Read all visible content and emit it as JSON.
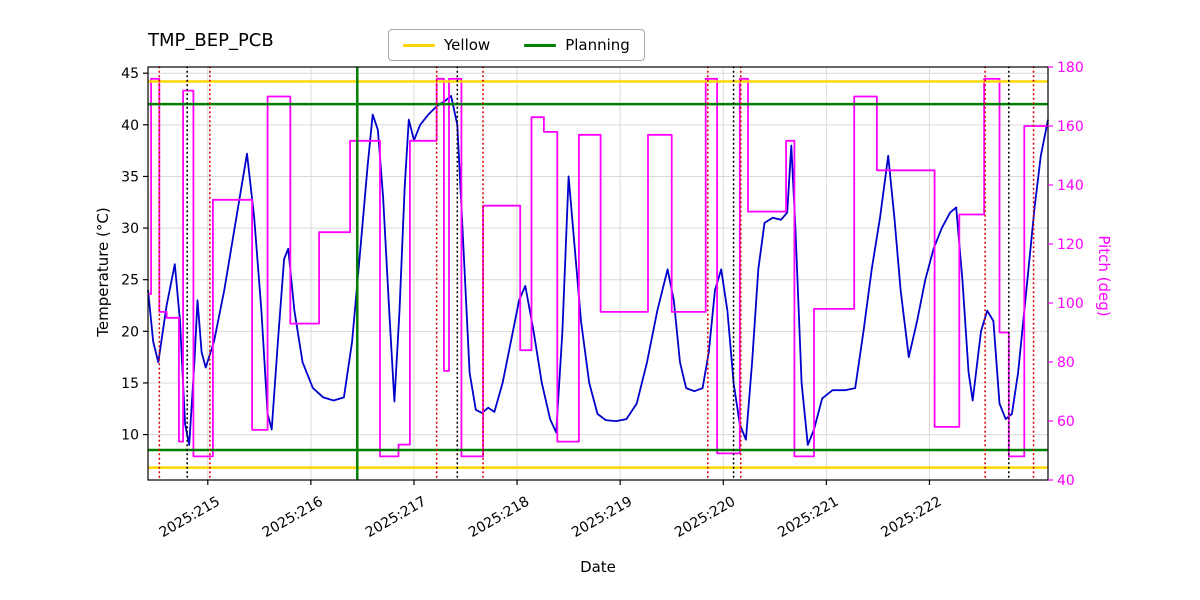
{
  "chart_data": {
    "type": "line",
    "title": "TMP_BEP_PCB",
    "xlabel": "Date",
    "background": "#ffffff",
    "grid": true,
    "grid_color": "#d9d9d9",
    "xlim": [
      214.42,
      223.15
    ],
    "x_ticks": [
      {
        "value": 215,
        "label": "2025:215"
      },
      {
        "value": 216,
        "label": "2025:216"
      },
      {
        "value": 217,
        "label": "2025:217"
      },
      {
        "value": 218,
        "label": "2025:218"
      },
      {
        "value": 219,
        "label": "2025:219"
      },
      {
        "value": 220,
        "label": "2025:220"
      },
      {
        "value": 221,
        "label": "2025:221"
      },
      {
        "value": 222,
        "label": "2025:222"
      }
    ],
    "left_axis": {
      "label": "Temperature (°C)",
      "lim": [
        5.6,
        45.6
      ],
      "ticks": [
        10,
        15,
        20,
        25,
        30,
        35,
        40,
        45
      ],
      "color": "#000000"
    },
    "right_axis": {
      "label": "Pitch (deg)",
      "lim": [
        40,
        180
      ],
      "ticks": [
        40,
        60,
        80,
        100,
        120,
        140,
        160,
        180
      ],
      "color": "#ff00ff"
    },
    "legend": {
      "position": "upper-center-outside",
      "items": [
        {
          "label": "Yellow",
          "color": "#ffd700"
        },
        {
          "label": "Planning",
          "color": "#008000"
        }
      ]
    },
    "hlines": [
      {
        "name": "yellow-upper",
        "y": 44.2,
        "axis": "left",
        "color": "#ffd700",
        "style": "solid"
      },
      {
        "name": "yellow-lower",
        "y": 6.8,
        "axis": "left",
        "color": "#ffd700",
        "style": "solid"
      },
      {
        "name": "planning-upper",
        "y": 42.0,
        "axis": "left",
        "color": "#008000",
        "style": "solid"
      },
      {
        "name": "planning-lower",
        "y": 8.5,
        "axis": "left",
        "color": "#008000",
        "style": "solid"
      }
    ],
    "vlines": [
      {
        "name": "green-solid-1",
        "x": 216.45,
        "color": "#008000",
        "style": "solid"
      },
      {
        "name": "red-dotted-1",
        "x": 214.53,
        "color": "#dd0000",
        "style": "dotted"
      },
      {
        "name": "red-dotted-2",
        "x": 215.02,
        "color": "#dd0000",
        "style": "dotted"
      },
      {
        "name": "red-dotted-3",
        "x": 217.22,
        "color": "#dd0000",
        "style": "dotted"
      },
      {
        "name": "red-dotted-4",
        "x": 217.67,
        "color": "#dd0000",
        "style": "dotted"
      },
      {
        "name": "red-dotted-5",
        "x": 219.85,
        "color": "#dd0000",
        "style": "dotted"
      },
      {
        "name": "red-dotted-6",
        "x": 220.17,
        "color": "#dd0000",
        "style": "dotted"
      },
      {
        "name": "red-dotted-7",
        "x": 222.54,
        "color": "#dd0000",
        "style": "dotted"
      },
      {
        "name": "red-dotted-8",
        "x": 223.01,
        "color": "#dd0000",
        "style": "dotted"
      },
      {
        "name": "black-dotted-1",
        "x": 214.8,
        "color": "#000000",
        "style": "dotted"
      },
      {
        "name": "black-dotted-2",
        "x": 217.42,
        "color": "#000000",
        "style": "dotted"
      },
      {
        "name": "black-dotted-3",
        "x": 220.1,
        "color": "#000000",
        "style": "dotted"
      },
      {
        "name": "black-dotted-4",
        "x": 222.77,
        "color": "#000000",
        "style": "dotted"
      }
    ],
    "series": [
      {
        "name": "temperature",
        "axis": "left",
        "type": "line",
        "color": "#0000cd",
        "points": [
          [
            214.42,
            24
          ],
          [
            214.47,
            19
          ],
          [
            214.52,
            17
          ],
          [
            214.6,
            22.5
          ],
          [
            214.68,
            26.5
          ],
          [
            214.73,
            21
          ],
          [
            214.78,
            11
          ],
          [
            214.82,
            9
          ],
          [
            214.87,
            17
          ],
          [
            214.9,
            23
          ],
          [
            214.94,
            18
          ],
          [
            214.98,
            16.5
          ],
          [
            215.06,
            19
          ],
          [
            215.16,
            24
          ],
          [
            215.26,
            30
          ],
          [
            215.38,
            37.2
          ],
          [
            215.45,
            31
          ],
          [
            215.52,
            22
          ],
          [
            215.58,
            12
          ],
          [
            215.62,
            10.5
          ],
          [
            215.68,
            19
          ],
          [
            215.74,
            27
          ],
          [
            215.78,
            28
          ],
          [
            215.84,
            22
          ],
          [
            215.92,
            17
          ],
          [
            216.02,
            14.5
          ],
          [
            216.12,
            13.6
          ],
          [
            216.22,
            13.3
          ],
          [
            216.32,
            13.6
          ],
          [
            216.4,
            19
          ],
          [
            216.48,
            28
          ],
          [
            216.55,
            36
          ],
          [
            216.6,
            41
          ],
          [
            216.65,
            39.5
          ],
          [
            216.7,
            33
          ],
          [
            216.76,
            22
          ],
          [
            216.81,
            13.2
          ],
          [
            216.86,
            22
          ],
          [
            216.91,
            34
          ],
          [
            216.95,
            40.5
          ],
          [
            217.0,
            38.5
          ],
          [
            217.06,
            40
          ],
          [
            217.14,
            41
          ],
          [
            217.22,
            41.8
          ],
          [
            217.3,
            42.3
          ],
          [
            217.36,
            42.8
          ],
          [
            217.42,
            40
          ],
          [
            217.48,
            28
          ],
          [
            217.54,
            16
          ],
          [
            217.6,
            12.4
          ],
          [
            217.66,
            12.1
          ],
          [
            217.72,
            12.6
          ],
          [
            217.78,
            12.2
          ],
          [
            217.86,
            15
          ],
          [
            217.94,
            19
          ],
          [
            218.02,
            23
          ],
          [
            218.08,
            24.4
          ],
          [
            218.16,
            20
          ],
          [
            218.24,
            15
          ],
          [
            218.32,
            11.5
          ],
          [
            218.38,
            10.2
          ],
          [
            218.44,
            20
          ],
          [
            218.5,
            35
          ],
          [
            218.56,
            28
          ],
          [
            218.62,
            21
          ],
          [
            218.7,
            15
          ],
          [
            218.78,
            12
          ],
          [
            218.86,
            11.4
          ],
          [
            218.96,
            11.3
          ],
          [
            219.06,
            11.5
          ],
          [
            219.16,
            13
          ],
          [
            219.26,
            17
          ],
          [
            219.36,
            22
          ],
          [
            219.46,
            26
          ],
          [
            219.52,
            23
          ],
          [
            219.58,
            17
          ],
          [
            219.64,
            14.5
          ],
          [
            219.72,
            14.2
          ],
          [
            219.8,
            14.5
          ],
          [
            219.86,
            18
          ],
          [
            219.92,
            24
          ],
          [
            219.98,
            26
          ],
          [
            220.04,
            22
          ],
          [
            220.1,
            15
          ],
          [
            220.16,
            11
          ],
          [
            220.22,
            9.5
          ],
          [
            220.28,
            17
          ],
          [
            220.34,
            26
          ],
          [
            220.4,
            30.5
          ],
          [
            220.48,
            31
          ],
          [
            220.56,
            30.8
          ],
          [
            220.62,
            31.5
          ],
          [
            220.66,
            38
          ],
          [
            220.7,
            30
          ],
          [
            220.76,
            15
          ],
          [
            220.82,
            9
          ],
          [
            220.88,
            10.5
          ],
          [
            220.96,
            13.5
          ],
          [
            221.06,
            14.3
          ],
          [
            221.18,
            14.3
          ],
          [
            221.28,
            14.5
          ],
          [
            221.36,
            20
          ],
          [
            221.44,
            26
          ],
          [
            221.52,
            31
          ],
          [
            221.6,
            37
          ],
          [
            221.66,
            31
          ],
          [
            221.72,
            24
          ],
          [
            221.8,
            17.5
          ],
          [
            221.88,
            21
          ],
          [
            221.96,
            25
          ],
          [
            222.04,
            28
          ],
          [
            222.12,
            30
          ],
          [
            222.2,
            31.5
          ],
          [
            222.26,
            32
          ],
          [
            222.32,
            25
          ],
          [
            222.38,
            16
          ],
          [
            222.42,
            13.3
          ],
          [
            222.5,
            20
          ],
          [
            222.56,
            22
          ],
          [
            222.62,
            21
          ],
          [
            222.68,
            13
          ],
          [
            222.74,
            11.5
          ],
          [
            222.8,
            12
          ],
          [
            222.86,
            16
          ],
          [
            222.94,
            24
          ],
          [
            223.02,
            32
          ],
          [
            223.08,
            37
          ],
          [
            223.15,
            40.5
          ]
        ]
      },
      {
        "name": "pitch",
        "axis": "right",
        "type": "step",
        "color": "#ff00ff",
        "points": [
          [
            214.42,
            103
          ],
          [
            214.45,
            176
          ],
          [
            214.53,
            97
          ],
          [
            214.6,
            95
          ],
          [
            214.72,
            53
          ],
          [
            214.76,
            172
          ],
          [
            214.86,
            48
          ],
          [
            215.05,
            135
          ],
          [
            215.43,
            57
          ],
          [
            215.58,
            170
          ],
          [
            215.8,
            93
          ],
          [
            216.08,
            124
          ],
          [
            216.38,
            155
          ],
          [
            216.67,
            48
          ],
          [
            216.85,
            52
          ],
          [
            216.96,
            155
          ],
          [
            217.22,
            176
          ],
          [
            217.29,
            77
          ],
          [
            217.34,
            176
          ],
          [
            217.46,
            48
          ],
          [
            217.67,
            133
          ],
          [
            218.03,
            84
          ],
          [
            218.14,
            163
          ],
          [
            218.26,
            158
          ],
          [
            218.39,
            53
          ],
          [
            218.6,
            157
          ],
          [
            218.81,
            97
          ],
          [
            219.27,
            157
          ],
          [
            219.5,
            97
          ],
          [
            219.83,
            176
          ],
          [
            219.94,
            49
          ],
          [
            220.16,
            176
          ],
          [
            220.24,
            131
          ],
          [
            220.61,
            155
          ],
          [
            220.69,
            48
          ],
          [
            220.88,
            98
          ],
          [
            221.27,
            170
          ],
          [
            221.49,
            145
          ],
          [
            222.05,
            58
          ],
          [
            222.29,
            130
          ],
          [
            222.53,
            176
          ],
          [
            222.68,
            90
          ],
          [
            222.77,
            48
          ],
          [
            222.92,
            160
          ],
          [
            223.15,
            160
          ]
        ]
      }
    ]
  }
}
